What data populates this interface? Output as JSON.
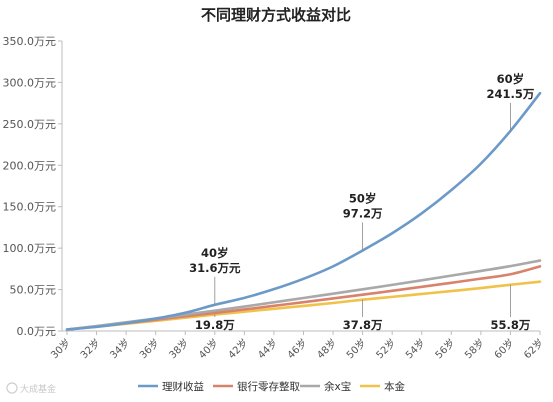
{
  "chart_data": {
    "type": "line",
    "title": "不同理财方式收益对比",
    "categories": [
      "30岁",
      "32岁",
      "34岁",
      "36岁",
      "38岁",
      "40岁",
      "42岁",
      "44岁",
      "46岁",
      "48岁",
      "50岁",
      "52岁",
      "54岁",
      "56岁",
      "58岁",
      "60岁",
      "62岁"
    ],
    "x": [
      30,
      32,
      34,
      36,
      38,
      40,
      42,
      44,
      46,
      48,
      50,
      52,
      54,
      56,
      58,
      60,
      62
    ],
    "ylim": [
      0,
      350
    ],
    "yticks": [
      "0.0万元",
      "50.0万元",
      "100.0万元",
      "150.0万元",
      "200.0万元",
      "250.0万元",
      "300.0万元",
      "350.0万元"
    ],
    "grid": false,
    "legend_position": "bottom",
    "series": [
      {
        "name": "理财收益",
        "color": "#6b9ac8",
        "values": [
          1.8,
          5,
          9.5,
          15,
          22,
          31.6,
          40,
          50.5,
          63,
          78,
          97.2,
          118,
          142,
          170,
          202,
          241.5,
          287
        ]
      },
      {
        "name": "银行零存整取",
        "color": "#d9826b",
        "values": [
          1.8,
          5.5,
          9.5,
          13.5,
          17.7,
          21.8,
          26,
          30.4,
          34.8,
          39.3,
          43.8,
          48.5,
          53.3,
          58.2,
          63.2,
          68.5,
          78
        ]
      },
      {
        "name": "余x宝",
        "color": "#a9a9a9",
        "values": [
          1.8,
          6,
          10.5,
          15,
          19.8,
          24.6,
          29.5,
          34.6,
          39.8,
          45,
          50.3,
          55.7,
          61.2,
          66.8,
          72.5,
          78.3,
          85
        ]
      },
      {
        "name": "本金",
        "color": "#f0c24a",
        "values": [
          1.8,
          5.2,
          8.7,
          12.3,
          16,
          19.8,
          23.3,
          26.8,
          30.3,
          33.8,
          37.8,
          41.2,
          44.7,
          48.2,
          51.8,
          55.8,
          59.5
        ]
      }
    ],
    "annotations": [
      {
        "age": 40,
        "line1": "40岁",
        "line2": "31.6万元",
        "value": 31.6,
        "series": "理财收益"
      },
      {
        "age": 50,
        "line1": "50岁",
        "line2": "97.2万",
        "value": 97.2,
        "series": "理财收益"
      },
      {
        "age": 60,
        "line1": "60岁",
        "line2": "241.5万",
        "value": 241.5,
        "series": "理财收益"
      },
      {
        "age": 40,
        "line1": "19.8万",
        "value": 19.8,
        "series": "本金"
      },
      {
        "age": 50,
        "line1": "37.8万",
        "value": 37.8,
        "series": "本金"
      },
      {
        "age": 60,
        "line1": "55.8万",
        "value": 55.8,
        "series": "本金"
      }
    ]
  },
  "watermark": "大成基金"
}
